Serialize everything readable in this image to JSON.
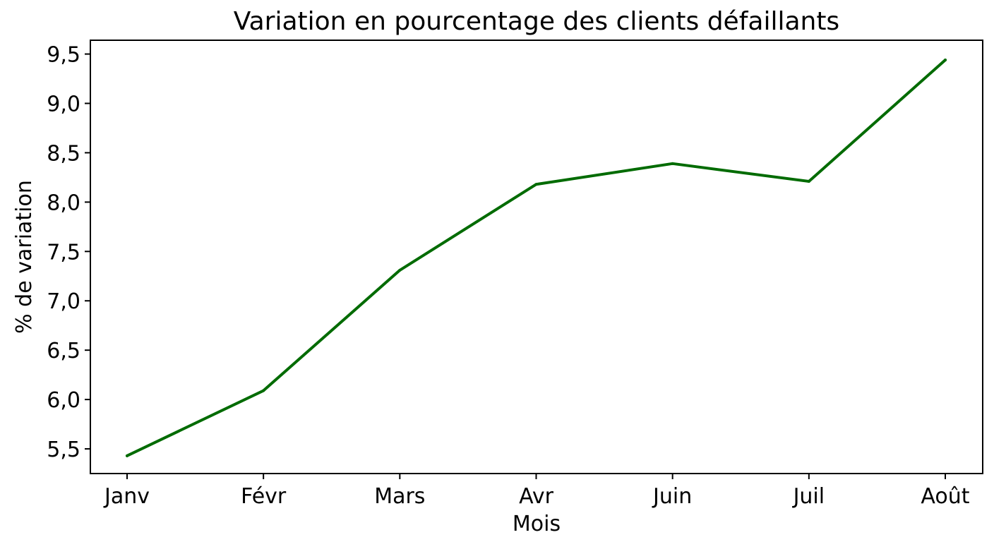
{
  "chart_data": {
    "type": "line",
    "title": "Variation en pourcentage des clients défaillants",
    "xlabel": "Mois",
    "ylabel": "% de variation",
    "categories": [
      "Janv",
      "Févr",
      "Mars",
      "Avr",
      "Juin",
      "Juil",
      "Août"
    ],
    "series": [
      {
        "values": [
          5.43,
          6.09,
          7.31,
          8.18,
          8.39,
          8.21,
          9.44
        ]
      }
    ],
    "ylim": [
      5.25,
      9.64
    ],
    "yticks": [
      5.5,
      6.0,
      6.5,
      7.0,
      7.5,
      8.0,
      8.5,
      9.0,
      9.5
    ],
    "ytick_labels": [
      "5,5",
      "6,0",
      "6,5",
      "7,0",
      "7,5",
      "8,0",
      "8,5",
      "9,0",
      "9,5"
    ],
    "grid": false,
    "legend": "none",
    "line_color": "#006b00",
    "axis_color": "#000000"
  }
}
